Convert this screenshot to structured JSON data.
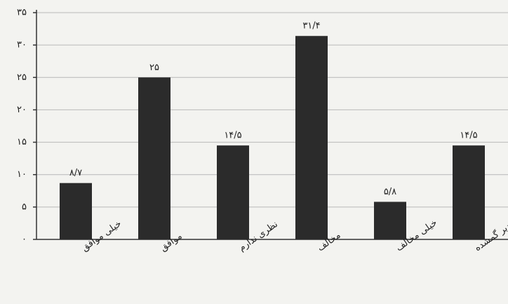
{
  "chart_data": {
    "type": "bar",
    "categories": [
      "خیلی موافق",
      "موافق",
      "نظری ندارم",
      "مخالف",
      "خیلی مخالف",
      "مقادیر گمشده"
    ],
    "values": [
      8.7,
      25,
      14.5,
      31.4,
      5.8,
      14.5
    ],
    "value_labels": [
      "۸/۷",
      "۲۵",
      "۱۴/۵",
      "۳۱/۴",
      "۵/۸",
      "۱۴/۵"
    ],
    "color": "#2b2b2b",
    "ylim": [
      0,
      35
    ],
    "yticks": [
      {
        "value": 0,
        "label": "۰"
      },
      {
        "value": 5,
        "label": "۵"
      },
      {
        "value": 10,
        "label": "۱۰"
      },
      {
        "value": 15,
        "label": "۱۵"
      },
      {
        "value": 20,
        "label": "۲۰"
      },
      {
        "value": 25,
        "label": "۲۵"
      },
      {
        "value": 30,
        "label": "۳۰"
      },
      {
        "value": 35,
        "label": "۳۵"
      }
    ],
    "grid": true
  }
}
